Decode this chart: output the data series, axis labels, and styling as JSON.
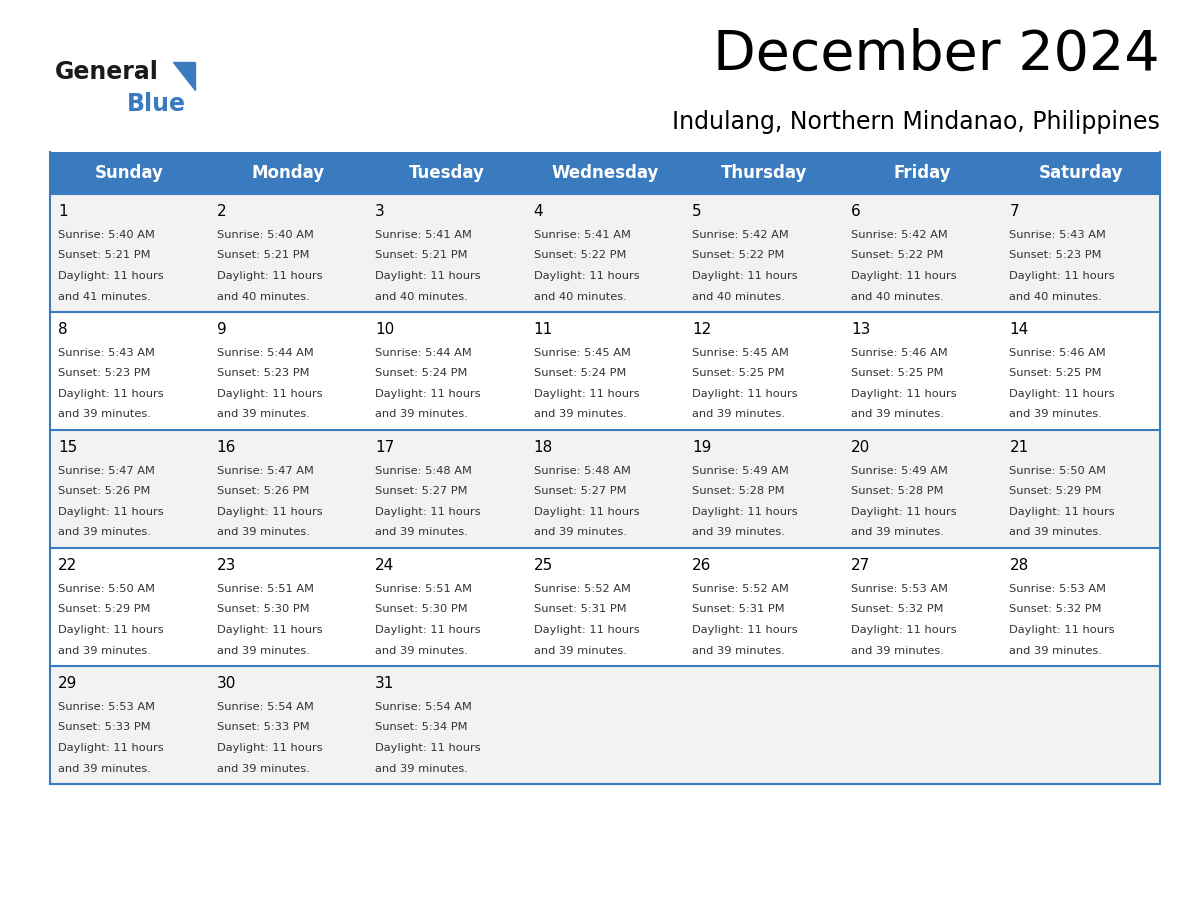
{
  "title": "December 2024",
  "subtitle": "Indulang, Northern Mindanao, Philippines",
  "header_color": "#3a7abf",
  "header_text_color": "#ffffff",
  "days_of_week": [
    "Sunday",
    "Monday",
    "Tuesday",
    "Wednesday",
    "Thursday",
    "Friday",
    "Saturday"
  ],
  "row_bg_even": "#f2f2f2",
  "row_bg_odd": "#ffffff",
  "border_color": "#3a7abf",
  "weeks": [
    [
      {
        "day": 1,
        "sunrise": "5:40 AM",
        "sunset": "5:21 PM",
        "daylight": "11 hours and 41 minutes."
      },
      {
        "day": 2,
        "sunrise": "5:40 AM",
        "sunset": "5:21 PM",
        "daylight": "11 hours and 40 minutes."
      },
      {
        "day": 3,
        "sunrise": "5:41 AM",
        "sunset": "5:21 PM",
        "daylight": "11 hours and 40 minutes."
      },
      {
        "day": 4,
        "sunrise": "5:41 AM",
        "sunset": "5:22 PM",
        "daylight": "11 hours and 40 minutes."
      },
      {
        "day": 5,
        "sunrise": "5:42 AM",
        "sunset": "5:22 PM",
        "daylight": "11 hours and 40 minutes."
      },
      {
        "day": 6,
        "sunrise": "5:42 AM",
        "sunset": "5:22 PM",
        "daylight": "11 hours and 40 minutes."
      },
      {
        "day": 7,
        "sunrise": "5:43 AM",
        "sunset": "5:23 PM",
        "daylight": "11 hours and 40 minutes."
      }
    ],
    [
      {
        "day": 8,
        "sunrise": "5:43 AM",
        "sunset": "5:23 PM",
        "daylight": "11 hours and 39 minutes."
      },
      {
        "day": 9,
        "sunrise": "5:44 AM",
        "sunset": "5:23 PM",
        "daylight": "11 hours and 39 minutes."
      },
      {
        "day": 10,
        "sunrise": "5:44 AM",
        "sunset": "5:24 PM",
        "daylight": "11 hours and 39 minutes."
      },
      {
        "day": 11,
        "sunrise": "5:45 AM",
        "sunset": "5:24 PM",
        "daylight": "11 hours and 39 minutes."
      },
      {
        "day": 12,
        "sunrise": "5:45 AM",
        "sunset": "5:25 PM",
        "daylight": "11 hours and 39 minutes."
      },
      {
        "day": 13,
        "sunrise": "5:46 AM",
        "sunset": "5:25 PM",
        "daylight": "11 hours and 39 minutes."
      },
      {
        "day": 14,
        "sunrise": "5:46 AM",
        "sunset": "5:25 PM",
        "daylight": "11 hours and 39 minutes."
      }
    ],
    [
      {
        "day": 15,
        "sunrise": "5:47 AM",
        "sunset": "5:26 PM",
        "daylight": "11 hours and 39 minutes."
      },
      {
        "day": 16,
        "sunrise": "5:47 AM",
        "sunset": "5:26 PM",
        "daylight": "11 hours and 39 minutes."
      },
      {
        "day": 17,
        "sunrise": "5:48 AM",
        "sunset": "5:27 PM",
        "daylight": "11 hours and 39 minutes."
      },
      {
        "day": 18,
        "sunrise": "5:48 AM",
        "sunset": "5:27 PM",
        "daylight": "11 hours and 39 minutes."
      },
      {
        "day": 19,
        "sunrise": "5:49 AM",
        "sunset": "5:28 PM",
        "daylight": "11 hours and 39 minutes."
      },
      {
        "day": 20,
        "sunrise": "5:49 AM",
        "sunset": "5:28 PM",
        "daylight": "11 hours and 39 minutes."
      },
      {
        "day": 21,
        "sunrise": "5:50 AM",
        "sunset": "5:29 PM",
        "daylight": "11 hours and 39 minutes."
      }
    ],
    [
      {
        "day": 22,
        "sunrise": "5:50 AM",
        "sunset": "5:29 PM",
        "daylight": "11 hours and 39 minutes."
      },
      {
        "day": 23,
        "sunrise": "5:51 AM",
        "sunset": "5:30 PM",
        "daylight": "11 hours and 39 minutes."
      },
      {
        "day": 24,
        "sunrise": "5:51 AM",
        "sunset": "5:30 PM",
        "daylight": "11 hours and 39 minutes."
      },
      {
        "day": 25,
        "sunrise": "5:52 AM",
        "sunset": "5:31 PM",
        "daylight": "11 hours and 39 minutes."
      },
      {
        "day": 26,
        "sunrise": "5:52 AM",
        "sunset": "5:31 PM",
        "daylight": "11 hours and 39 minutes."
      },
      {
        "day": 27,
        "sunrise": "5:53 AM",
        "sunset": "5:32 PM",
        "daylight": "11 hours and 39 minutes."
      },
      {
        "day": 28,
        "sunrise": "5:53 AM",
        "sunset": "5:32 PM",
        "daylight": "11 hours and 39 minutes."
      }
    ],
    [
      {
        "day": 29,
        "sunrise": "5:53 AM",
        "sunset": "5:33 PM",
        "daylight": "11 hours and 39 minutes."
      },
      {
        "day": 30,
        "sunrise": "5:54 AM",
        "sunset": "5:33 PM",
        "daylight": "11 hours and 39 minutes."
      },
      {
        "day": 31,
        "sunrise": "5:54 AM",
        "sunset": "5:34 PM",
        "daylight": "11 hours and 39 minutes."
      },
      null,
      null,
      null,
      null
    ]
  ]
}
